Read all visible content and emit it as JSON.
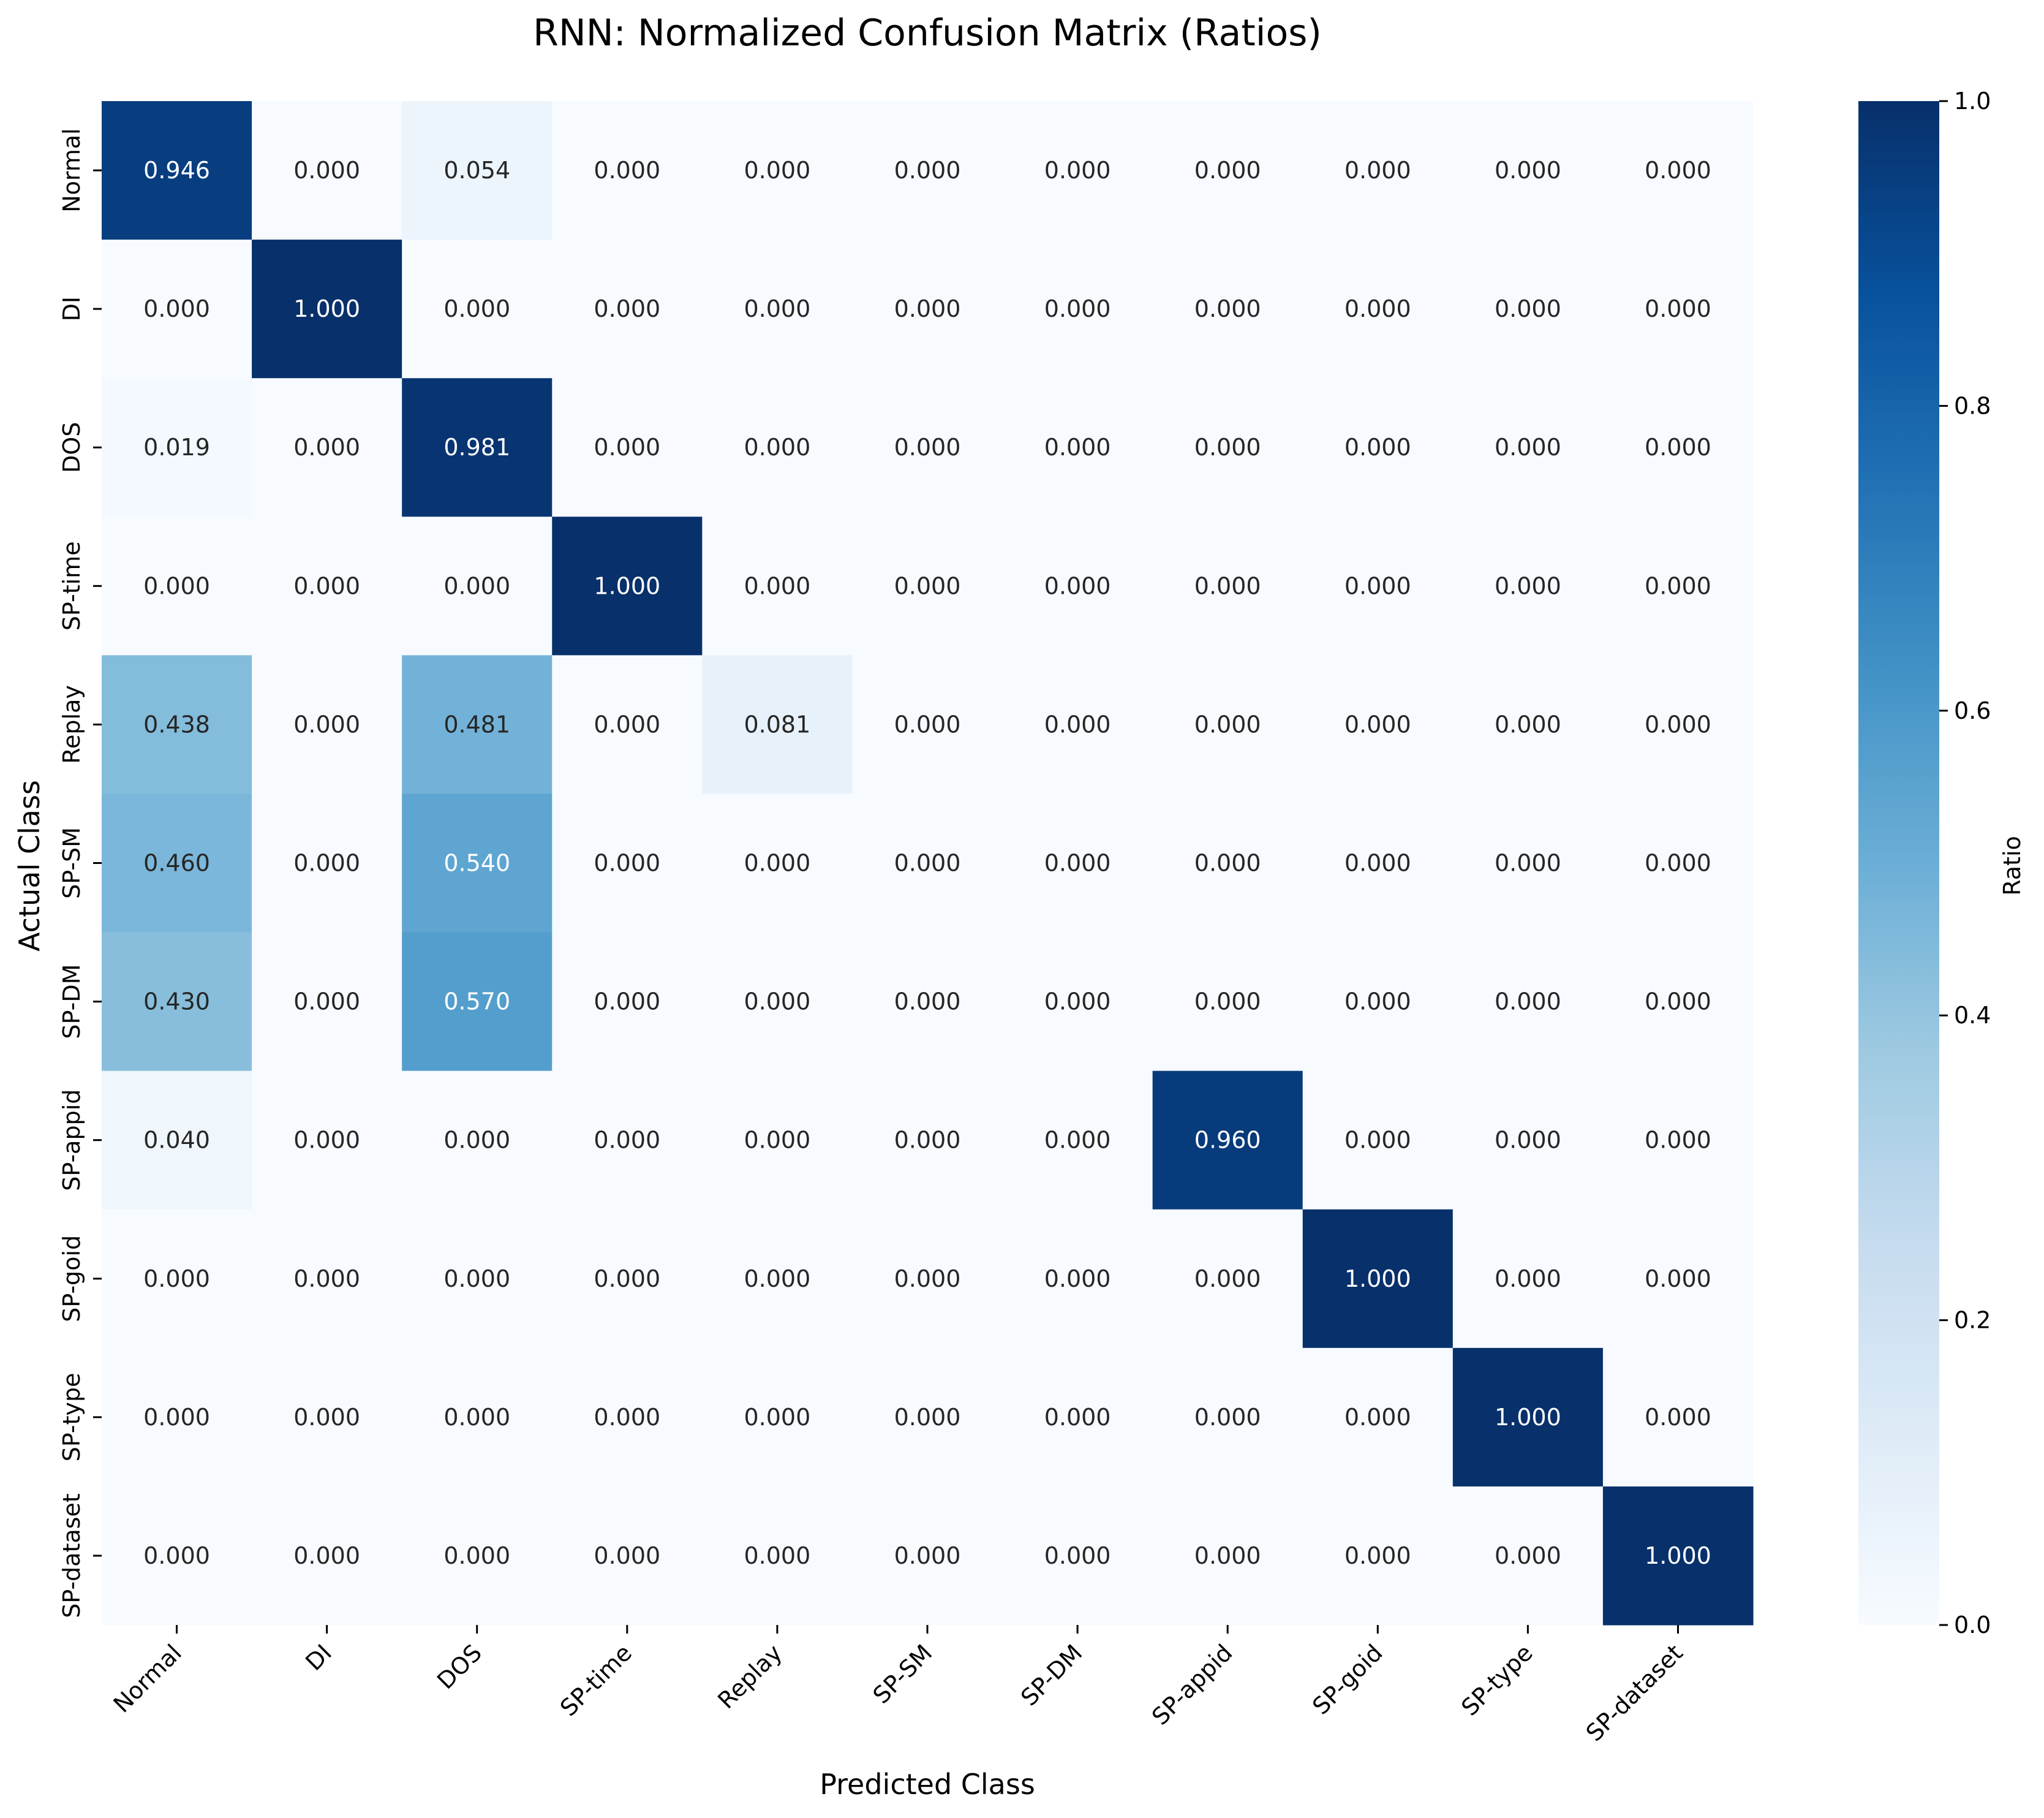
{
  "chart_data": {
    "type": "heatmap",
    "title": "RNN: Normalized Confusion Matrix (Ratios)",
    "xlabel": "Predicted Class",
    "ylabel": "Actual Class",
    "x_categories": [
      "Normal",
      "DI",
      "DOS",
      "SP-time",
      "Replay",
      "SP-SM",
      "SP-DM",
      "SP-appid",
      "SP-goid",
      "SP-type",
      "SP-dataset"
    ],
    "y_categories": [
      "Normal",
      "DI",
      "DOS",
      "SP-time",
      "Replay",
      "SP-SM",
      "SP-DM",
      "SP-appid",
      "SP-goid",
      "SP-type",
      "SP-dataset"
    ],
    "values": [
      [
        0.946,
        0.0,
        0.054,
        0.0,
        0.0,
        0.0,
        0.0,
        0.0,
        0.0,
        0.0,
        0.0
      ],
      [
        0.0,
        1.0,
        0.0,
        0.0,
        0.0,
        0.0,
        0.0,
        0.0,
        0.0,
        0.0,
        0.0
      ],
      [
        0.019,
        0.0,
        0.981,
        0.0,
        0.0,
        0.0,
        0.0,
        0.0,
        0.0,
        0.0,
        0.0
      ],
      [
        0.0,
        0.0,
        0.0,
        1.0,
        0.0,
        0.0,
        0.0,
        0.0,
        0.0,
        0.0,
        0.0
      ],
      [
        0.438,
        0.0,
        0.481,
        0.0,
        0.081,
        0.0,
        0.0,
        0.0,
        0.0,
        0.0,
        0.0
      ],
      [
        0.46,
        0.0,
        0.54,
        0.0,
        0.0,
        0.0,
        0.0,
        0.0,
        0.0,
        0.0,
        0.0
      ],
      [
        0.43,
        0.0,
        0.57,
        0.0,
        0.0,
        0.0,
        0.0,
        0.0,
        0.0,
        0.0,
        0.0
      ],
      [
        0.04,
        0.0,
        0.0,
        0.0,
        0.0,
        0.0,
        0.0,
        0.96,
        0.0,
        0.0,
        0.0
      ],
      [
        0.0,
        0.0,
        0.0,
        0.0,
        0.0,
        0.0,
        0.0,
        0.0,
        1.0,
        0.0,
        0.0
      ],
      [
        0.0,
        0.0,
        0.0,
        0.0,
        0.0,
        0.0,
        0.0,
        0.0,
        0.0,
        1.0,
        0.0
      ],
      [
        0.0,
        0.0,
        0.0,
        0.0,
        0.0,
        0.0,
        0.0,
        0.0,
        0.0,
        0.0,
        1.0
      ]
    ],
    "colorbar": {
      "label": "Ratio",
      "range": [
        0,
        1
      ],
      "ticks": [
        "0.0",
        "0.2",
        "0.4",
        "0.6",
        "0.8",
        "1.0"
      ],
      "colormap": "Blues",
      "color_stops": [
        "#f7fbff",
        "#deebf7",
        "#c6dbef",
        "#9ecae1",
        "#6baed6",
        "#4292c6",
        "#2171b5",
        "#08519c",
        "#08306b"
      ]
    },
    "grid": false
  }
}
